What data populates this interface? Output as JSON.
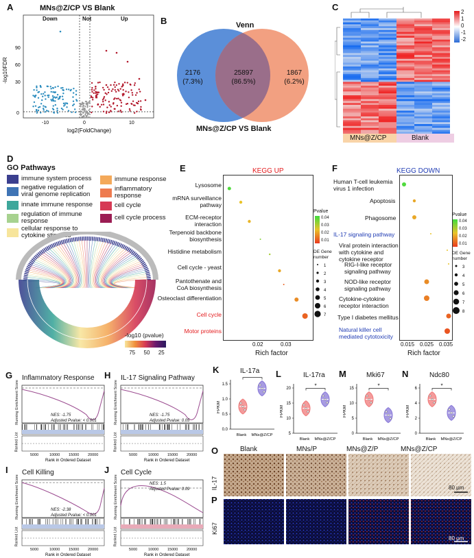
{
  "panels": {
    "A": {
      "label": "A",
      "title": "MNs@Z/CP VS Blank",
      "down": "Down",
      "not": "Not",
      "up": "Up",
      "xlabel": "log2(FoldChange)",
      "ylabel": "-log10FDR",
      "xticks": [
        "-10",
        "0",
        "10"
      ],
      "yticks": [
        "0",
        "30",
        "60",
        "90"
      ]
    },
    "B": {
      "label": "B",
      "title": "Venn",
      "left_count": "2176",
      "left_pct": "(7.3%)",
      "mid_count": "25897",
      "mid_pct": "(86.5%)",
      "right_count": "1867",
      "right_pct": "(6.2%)",
      "subtitle": "MNs@Z/CP VS Blank",
      "left_color": "#5b8fd9",
      "right_color": "#f08f6b"
    },
    "C": {
      "label": "C",
      "legend": [
        "2",
        "1",
        "0",
        "-1",
        "-2"
      ],
      "groups": [
        "MNs@Z/CP",
        "Blank"
      ]
    },
    "D": {
      "label": "D",
      "title": "GO Pathways",
      "items": [
        {
          "label": "immune system process",
          "color": "#3b3f8f"
        },
        {
          "label": "immune response",
          "color": "#f4a95a"
        },
        {
          "label": "negative regulation of viral genome replication",
          "color": "#3f74b5"
        },
        {
          "label": "inflammatory response",
          "color": "#ee7b4f"
        },
        {
          "label": "innate immune response",
          "color": "#3da79b"
        },
        {
          "label": "cell cycle",
          "color": "#d63a55"
        },
        {
          "label": "regulation of immune response",
          "color": "#a7d28f"
        },
        {
          "label": "cell cycle process",
          "color": "#9b1d53"
        },
        {
          "label": "cellular response to cytokine stimulus",
          "color": "#f7e59c"
        }
      ],
      "pvalue_title": "-log10 (pvalue)",
      "pvalue_ticks": [
        "75",
        "50",
        "25"
      ]
    },
    "E": {
      "label": "E",
      "title": "KEGG UP",
      "xlabel": "Rich factor",
      "xticks": [
        "0.02",
        "0.03"
      ],
      "terms": [
        "Lysosome",
        "mRNA surveillance pathway",
        "ECM-receptor interaction",
        "Terpenoid backbone biosynthesis",
        "Histidine metabolism",
        "Cell cycle - yeast",
        "Pantothenate and CoA biosynthesis",
        "Osteoclast differentiation",
        "Cell cycle",
        "Motor proteins"
      ],
      "pvalue_label": "Pvalue",
      "pvalue_ticks": [
        "0.04",
        "0.03",
        "0.02",
        "0.01"
      ],
      "gene_label": "DE Gene number",
      "gene_ticks": [
        "1",
        "2",
        "3",
        "4",
        "5",
        "6",
        "7"
      ]
    },
    "F": {
      "label": "F",
      "title": "KEGG DOWN",
      "xlabel": "Rich factor",
      "xticks": [
        "0.015",
        "0.025",
        "0.035"
      ],
      "terms": [
        "Human T-cell leukemia virus 1 infection",
        "Apoptosis",
        "Phagosome",
        "IL-17 signaling pathway",
        "Viral protein interaction with cytokine and cytokine receptor",
        "RIG-I-like receptor signaling pathway",
        "NOD-like receptor signaling pathway",
        "Cytokine-cytokine receptor interaction",
        "Type I diabetes mellitus",
        "Natural killer cell mediated cytotoxicity"
      ],
      "pvalue_label": "Pvalue",
      "pvalue_ticks": [
        "0.04",
        "0.03",
        "0.02",
        "0.01"
      ],
      "gene_label": "DE Gene number",
      "gene_ticks": [
        "3",
        "4",
        "5",
        "6",
        "7",
        "8"
      ]
    },
    "G": {
      "label": "G",
      "title": "Inflammatory Response",
      "nes": "NES: -1.75",
      "p": "Adjusted Pvalue: < 0.001"
    },
    "H": {
      "label": "H",
      "title": "IL-17 Signaling Pathway",
      "nes": "NES: -1.75",
      "p": "Adjusted Pvalue: 0.05"
    },
    "I": {
      "label": "I",
      "title": "Cell Killing",
      "nes": "NES: -2.38",
      "p": "Adjusted Pvalue: < 0.001"
    },
    "J": {
      "label": "J",
      "title": "Cell Cycle",
      "nes": "NES: 1.5",
      "p": "Adjusted Pvalue: 0.09"
    },
    "gsea_common": {
      "ylabel": "Running Enrichment Score",
      "ranked": "Ranked List",
      "xlabel": "Rank in Ordered Dataset",
      "xticks": [
        "5000",
        "10000",
        "15000",
        "20000"
      ]
    },
    "K": {
      "label": "K",
      "title": "IL-17a",
      "sig": "**",
      "yticks": [
        "0.0",
        "0.5",
        "1.0",
        "1.5"
      ]
    },
    "L": {
      "label": "L",
      "title": "IL-17ra",
      "sig": "*",
      "yticks": [
        "5",
        "10",
        "15",
        "20"
      ]
    },
    "M": {
      "label": "M",
      "title": "Mki67",
      "sig": "*",
      "yticks": [
        "0",
        "5",
        "10",
        "15"
      ]
    },
    "N": {
      "label": "N",
      "title": "Ndc80",
      "sig": "*",
      "yticks": [
        "0",
        "2",
        "4",
        "6"
      ]
    },
    "violin_common": {
      "ylabel": "FPKM",
      "groups": [
        "Blank",
        "MNs@Z/CP"
      ]
    },
    "O": {
      "label": "O",
      "columns": [
        "Blank",
        "MNs/P",
        "MNs@Z/P",
        "MNs@Z/CP"
      ],
      "row": "IL-17",
      "scale": "80 μm"
    },
    "P": {
      "label": "P",
      "row": "Ki67",
      "scale": "80 μm"
    }
  }
}
